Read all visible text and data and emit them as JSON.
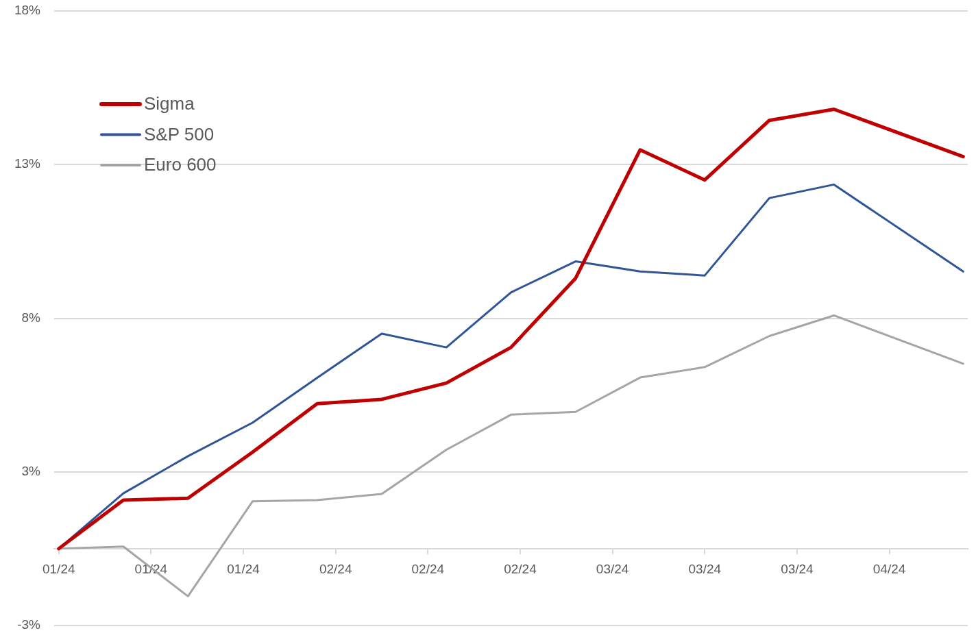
{
  "chart_data": {
    "type": "line",
    "x": [
      "--01-05",
      "--01-12",
      "--01-19",
      "--01-26",
      "--02-02",
      "--02-09",
      "--02-16",
      "--02-23",
      "--03-02",
      "--03-09",
      "--03-16",
      "--03-23",
      "--03-30",
      "--04-13"
    ],
    "series": [
      {
        "name": "Sigma",
        "color": "#c00000",
        "values": [
          0,
          1.58,
          1.64,
          3.14,
          4.72,
          4.86,
          5.39,
          6.55,
          8.8,
          12.98,
          12.0,
          13.94,
          14.3,
          12.76
        ]
      },
      {
        "name": "S&P 500",
        "color": "#2f5597",
        "values": [
          0,
          1.8,
          3.01,
          4.1,
          5.56,
          7.0,
          6.55,
          8.34,
          9.35,
          9.02,
          8.89,
          11.41,
          11.85,
          9.02
        ]
      },
      {
        "name": "Euro 600",
        "color": "#a5a5a5",
        "values": [
          0,
          0.07,
          -1.55,
          1.54,
          1.58,
          1.78,
          3.22,
          4.36,
          4.45,
          5.57,
          5.91,
          6.92,
          7.59,
          6.02
        ]
      }
    ],
    "xlim": [
      "--01-04T12:00",
      "--04-13T12:00"
    ],
    "xticks": [
      {
        "value": "--01-05",
        "label": "01/24"
      },
      {
        "value": "--01-15",
        "label": "01/24"
      },
      {
        "value": "--01-25",
        "label": "01/24"
      },
      {
        "value": "--02-04",
        "label": "02/24"
      },
      {
        "value": "--02-14",
        "label": "02/24"
      },
      {
        "value": "--02-24",
        "label": "02/24"
      },
      {
        "value": "--03-06",
        "label": "03/24"
      },
      {
        "value": "--03-16",
        "label": "03/24"
      },
      {
        "value": "--03-26",
        "label": "03/24"
      },
      {
        "value": "--04-05",
        "label": "04/24"
      }
    ],
    "ylim": [
      -2.5,
      17.5
    ],
    "yticks": [
      {
        "value": -2.5,
        "label": "-3%"
      },
      {
        "value": 2.5,
        "label": "3%"
      },
      {
        "value": 7.5,
        "label": "8%"
      },
      {
        "value": 12.5,
        "label": "13%"
      },
      {
        "value": 17.5,
        "label": "18%"
      }
    ],
    "grid": "y",
    "legend": "top left"
  }
}
